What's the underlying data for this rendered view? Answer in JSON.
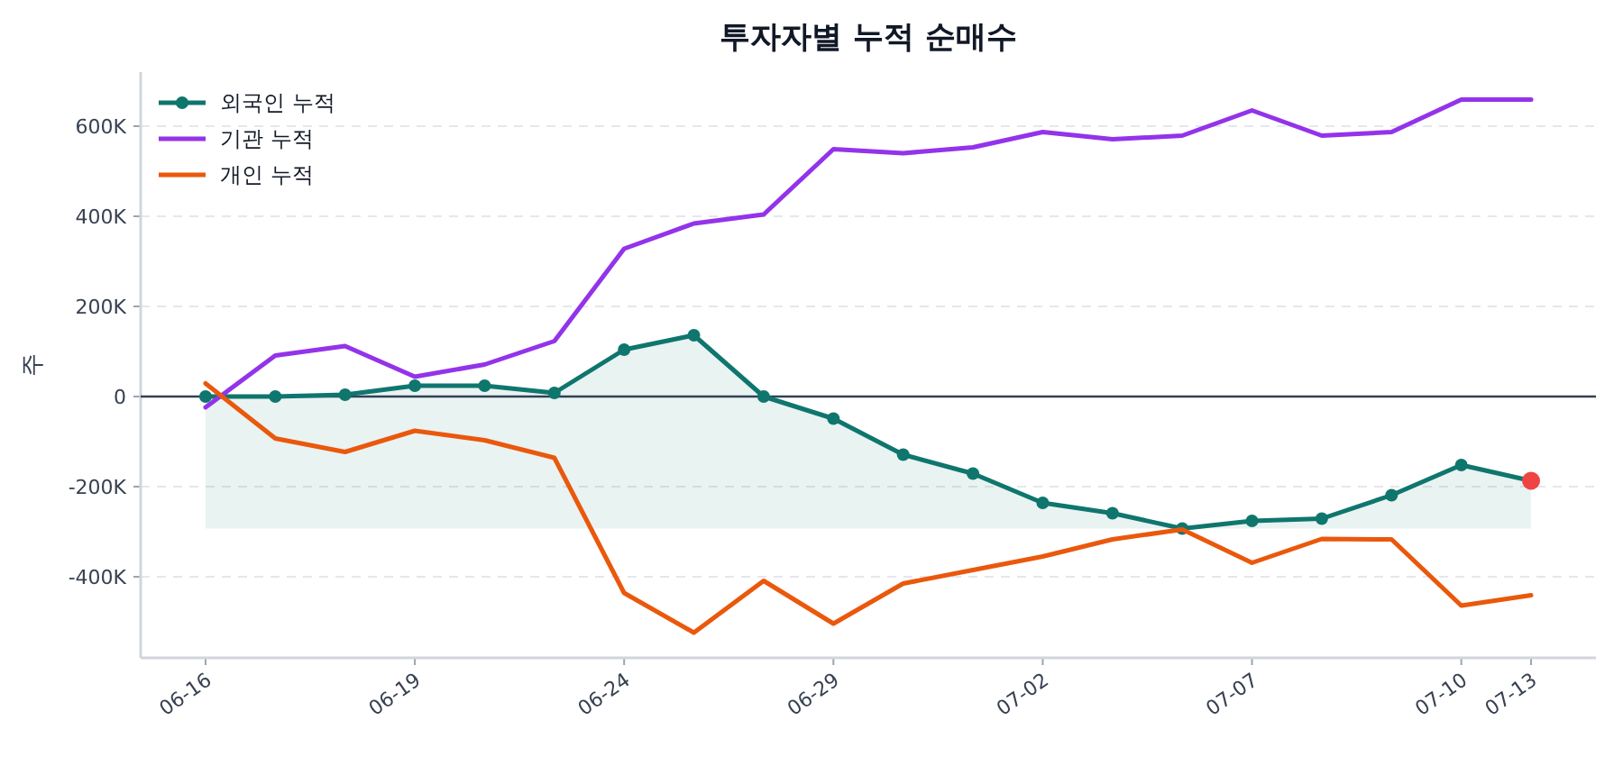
{
  "chart_data": {
    "type": "line",
    "title": "투자자별 누적 순매수",
    "ylabel": "주",
    "categories": [
      "06-16",
      null,
      null,
      "06-19",
      null,
      null,
      "06-24",
      null,
      null,
      "06-29",
      null,
      null,
      "07-02",
      null,
      null,
      "07-07",
      null,
      null,
      "07-10",
      "07-13"
    ],
    "series": [
      {
        "name": "외국인 누적",
        "color": "#0f766e",
        "marker": "circle",
        "values": [
          0,
          0,
          4000,
          24000,
          24000,
          8000,
          104000,
          136000,
          0,
          -49000,
          -129000,
          -171000,
          -236000,
          -259000,
          -293000,
          -276000,
          -271000,
          -219000,
          -152000,
          -187000
        ],
        "lower": [
          -293000,
          -293000,
          -293000,
          -293000,
          -293000,
          -293000,
          -293000,
          -293000,
          -293000,
          -293000,
          -293000,
          -293000,
          -293000,
          -293000,
          -293000,
          -293000,
          -293000,
          -293000,
          -293000,
          -293000
        ],
        "upper": [
          0,
          0,
          4000,
          24000,
          24000,
          8000,
          104000,
          136000,
          0,
          -49000,
          -129000,
          -171000,
          -236000,
          -259000,
          -293000,
          -276000,
          -271000,
          -219000,
          -152000,
          -187000
        ]
      },
      {
        "name": "기관 누적",
        "color": "#9333ea",
        "marker": "none",
        "values": [
          -24000,
          91000,
          112000,
          44000,
          71000,
          123000,
          328000,
          384000,
          404000,
          549000,
          540000,
          553000,
          587000,
          571000,
          579000,
          635000,
          579000,
          587000,
          659000,
          659000
        ]
      },
      {
        "name": "개인 누적",
        "color": "#ea580c",
        "marker": "none",
        "values": [
          29000,
          -93000,
          -123000,
          -76000,
          -97000,
          -136000,
          -436000,
          -524000,
          -409000,
          -504000,
          -415000,
          -385000,
          -355000,
          -317000,
          -295000,
          -369000,
          -316000,
          -317000,
          -464000,
          -441000
        ]
      },
      {
        "type": "scatter",
        "color": "#ef4444",
        "marker": "circle",
        "values": [
          null,
          null,
          null,
          null,
          null,
          null,
          null,
          null,
          null,
          null,
          null,
          null,
          null,
          null,
          null,
          null,
          null,
          null,
          null,
          -187000
        ]
      }
    ],
    "ylim": [
      -580000,
      720000
    ],
    "yticks": [
      {
        "value": -400000,
        "label": "-400K"
      },
      {
        "value": -200000,
        "label": "-200K"
      },
      0,
      {
        "value": 200000,
        "label": "200K"
      },
      {
        "value": 400000,
        "label": "400K"
      },
      {
        "value": 600000,
        "label": "600K"
      }
    ],
    "ref_lines": [
      {
        "axis": "y",
        "value": 0,
        "color": "#334155"
      }
    ],
    "grid": "y",
    "line_style": "solid",
    "legend": "top left"
  }
}
